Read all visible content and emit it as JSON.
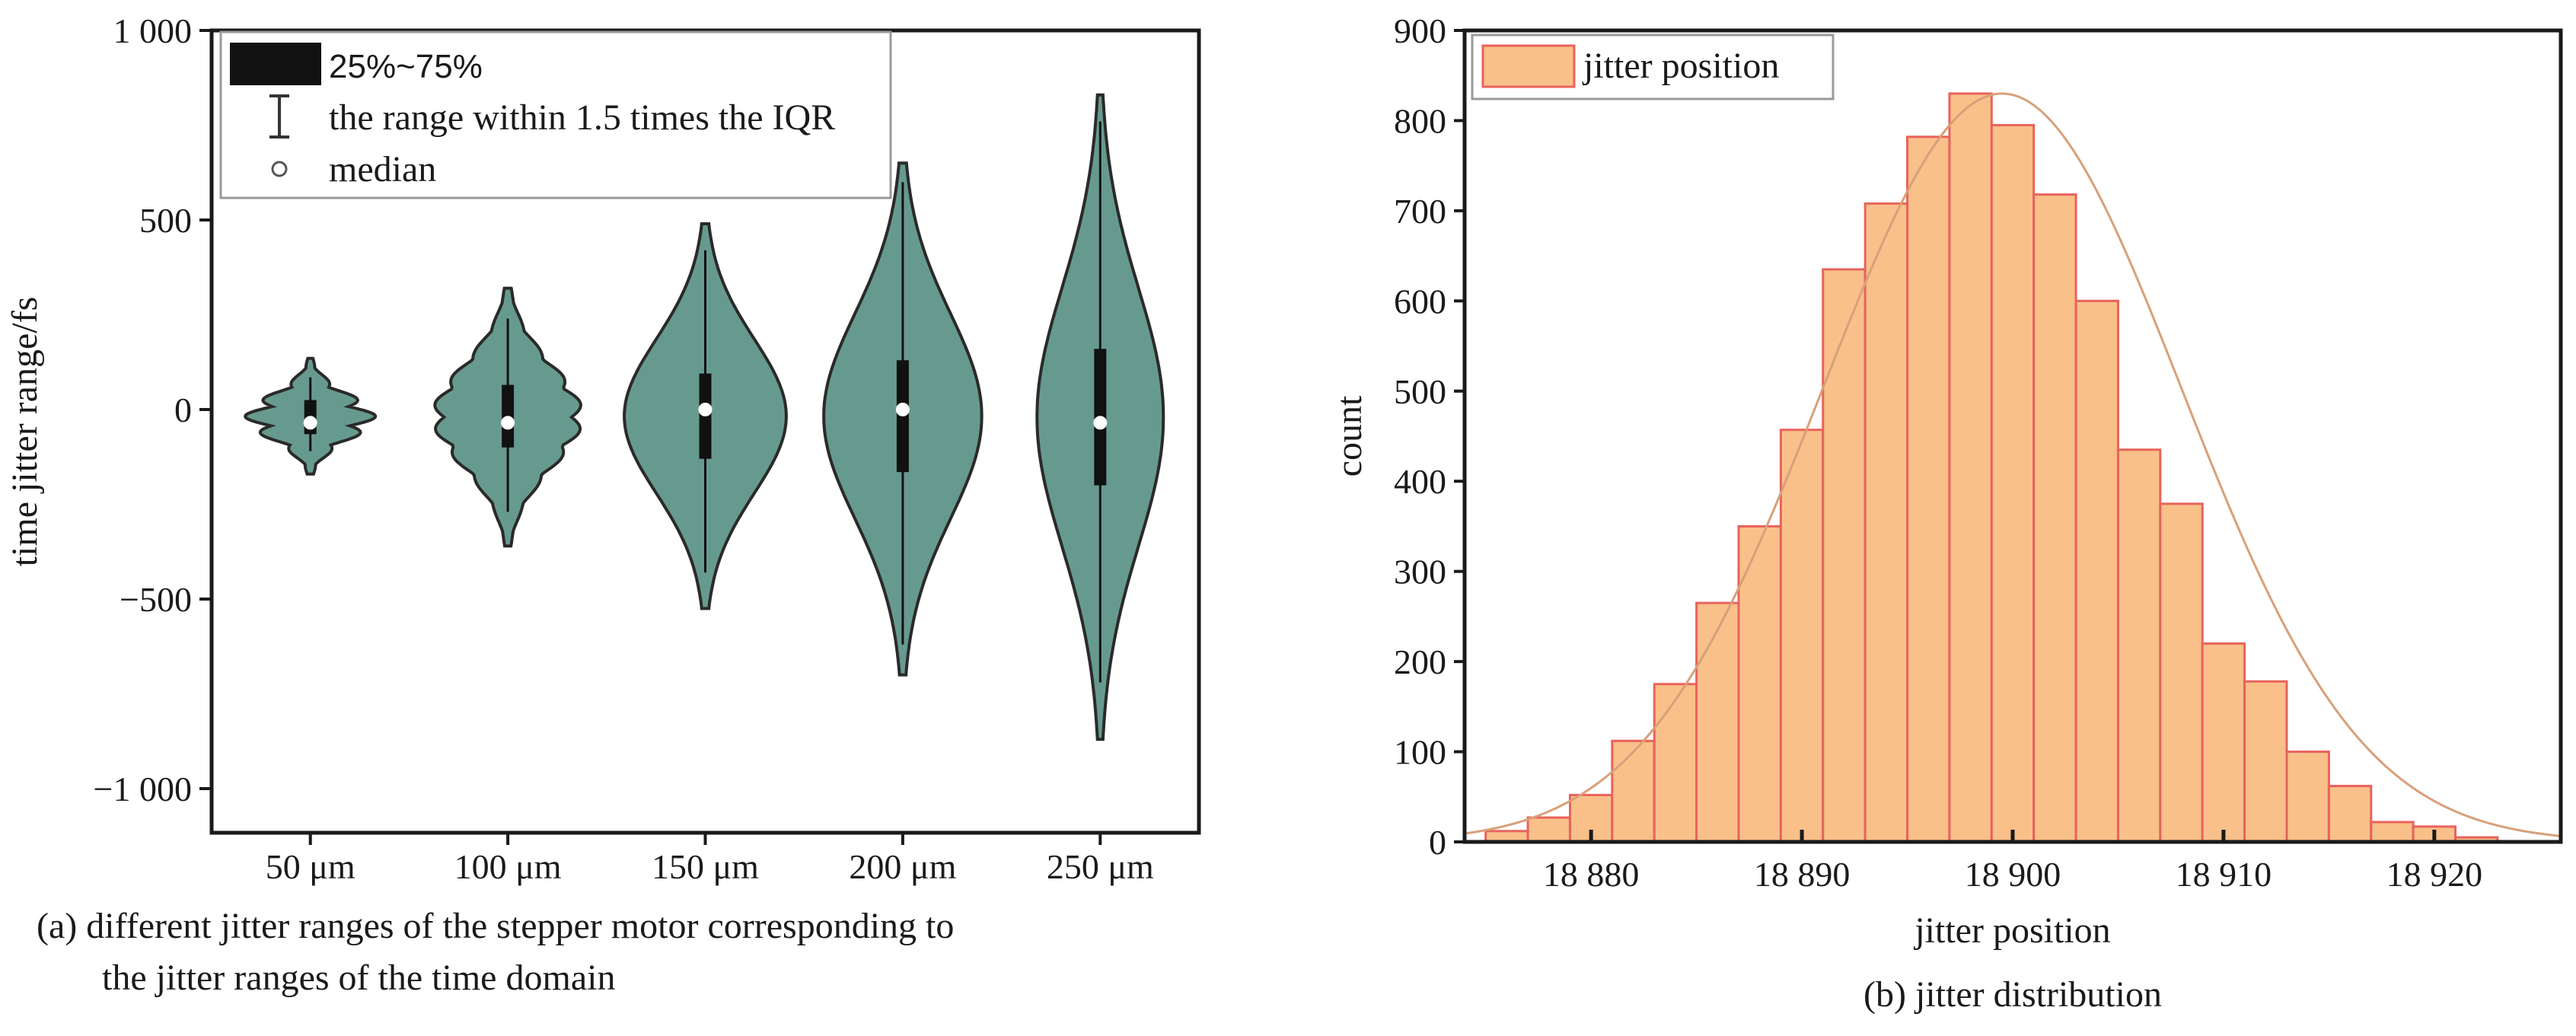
{
  "chart_data": [
    {
      "type": "violin",
      "caption_line1": "(a) different jitter ranges of the stepper motor corresponding to",
      "caption_line2": "the jitter ranges of the time domain",
      "ylabel": "time jitter range/fs",
      "ylim": [
        -1200,
        1000
      ],
      "yticks": [
        1000,
        500,
        0,
        -500,
        -1000
      ],
      "ytick_labels": [
        "1 000",
        "500",
        "0",
        "−500",
        "−1 000"
      ],
      "categories": [
        "50 μm",
        "100 μm",
        "150 μm",
        "200 μm",
        "250 μm"
      ],
      "fill_color": "#679a8f",
      "legend": {
        "position": "top-left",
        "items": [
          {
            "symbol": "box",
            "label": "25%~75%"
          },
          {
            "symbol": "whisker",
            "label": "the range within 1.5 times the IQR"
          },
          {
            "symbol": "circle",
            "label": "median"
          }
        ]
      },
      "violins": [
        {
          "category": "50 μm",
          "min": -170,
          "max": 135,
          "q1": -65,
          "q3": 25,
          "median": -35,
          "whisker_low": -110,
          "whisker_high": 85,
          "halfwidth": 0.33
        },
        {
          "category": "100 μm",
          "min": -360,
          "max": 320,
          "q1": -100,
          "q3": 65,
          "median": -35,
          "whisker_low": -270,
          "whisker_high": 240,
          "halfwidth": 0.38
        },
        {
          "category": "150 μm",
          "min": -525,
          "max": 490,
          "q1": -130,
          "q3": 95,
          "median": 0,
          "whisker_low": -430,
          "whisker_high": 420,
          "halfwidth": 0.41
        },
        {
          "category": "200 μm",
          "min": -700,
          "max": 650,
          "q1": -165,
          "q3": 130,
          "median": 0,
          "whisker_low": -620,
          "whisker_high": 600,
          "halfwidth": 0.4
        },
        {
          "category": "250 μm",
          "min": -870,
          "max": 830,
          "q1": -200,
          "q3": 160,
          "median": -35,
          "whisker_low": -720,
          "whisker_high": 760,
          "halfwidth": 0.32
        }
      ]
    },
    {
      "type": "bar",
      "caption": "(b) jitter distribution",
      "xlabel": "jitter position",
      "ylabel": "count",
      "xlim": [
        18874,
        18926
      ],
      "ylim": [
        0,
        900
      ],
      "xticks": [
        18880,
        18890,
        18900,
        18910,
        18920
      ],
      "xtick_labels": [
        "18 880",
        "18 890",
        "18 900",
        "18 910",
        "18 920"
      ],
      "yticks": [
        0,
        100,
        200,
        300,
        400,
        500,
        600,
        700,
        800,
        900
      ],
      "legend": {
        "position": "top-left",
        "label": "jitter position"
      },
      "bar_fill": "#f9c08a",
      "bar_edge": "#e8635b",
      "curve_color": "#d8a07a",
      "bins_start": 18875,
      "bin_width": 2,
      "values": [
        12,
        27,
        52,
        112,
        175,
        265,
        350,
        457,
        635,
        708,
        782,
        830,
        795,
        718,
        600,
        435,
        375,
        220,
        178,
        100,
        62,
        22,
        17,
        5
      ],
      "fit": {
        "type": "normal",
        "mean": 18899.5,
        "sd": 8.5,
        "peak": 830
      }
    }
  ]
}
